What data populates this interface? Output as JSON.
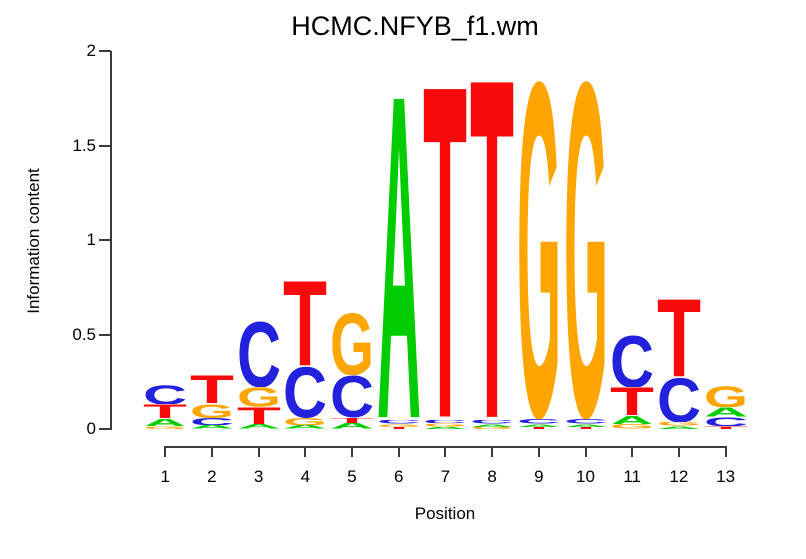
{
  "chart_data": {
    "type": "sequence-logo",
    "title": "HCMC.NFYB_f1.wm",
    "xlabel": "Position",
    "ylabel": "Information content",
    "ylim": [
      0,
      2
    ],
    "yticks": [
      {
        "value": 0,
        "label": "0"
      },
      {
        "value": 0.5,
        "label": "0.5"
      },
      {
        "value": 1,
        "label": "1"
      },
      {
        "value": 1.5,
        "label": "1.5"
      },
      {
        "value": 2,
        "label": "2"
      }
    ],
    "positions": [
      "1",
      "2",
      "3",
      "4",
      "5",
      "6",
      "7",
      "8",
      "9",
      "10",
      "11",
      "12",
      "13"
    ],
    "base_colors": {
      "A": "#00CC00",
      "C": "#2222DD",
      "G": "#FFA500",
      "T": "#F90A0A"
    },
    "stacks_note": "letters listed bottom-to-top, heights in bits (information content)",
    "stacks": [
      [
        {
          "base": "G",
          "bits": 0.015
        },
        {
          "base": "A",
          "bits": 0.04
        },
        {
          "base": "T",
          "bits": 0.075
        },
        {
          "base": "C",
          "bits": 0.105
        }
      ],
      [
        {
          "base": "A",
          "bits": 0.02
        },
        {
          "base": "C",
          "bits": 0.04
        },
        {
          "base": "G",
          "bits": 0.075
        },
        {
          "base": "T",
          "bits": 0.15
        }
      ],
      [
        {
          "base": "A",
          "bits": 0.025
        },
        {
          "base": "T",
          "bits": 0.09
        },
        {
          "base": "G",
          "bits": 0.105
        },
        {
          "base": "C",
          "bits": 0.35
        }
      ],
      [
        {
          "base": "A",
          "bits": 0.02
        },
        {
          "base": "G",
          "bits": 0.04
        },
        {
          "base": "C",
          "bits": 0.275
        },
        {
          "base": "T",
          "bits": 0.46
        }
      ],
      [
        {
          "base": "A",
          "bits": 0.03
        },
        {
          "base": "T",
          "bits": 0.03
        },
        {
          "base": "C",
          "bits": 0.225
        },
        {
          "base": "G",
          "bits": 0.335
        }
      ],
      [
        {
          "base": "T",
          "bits": 0.012
        },
        {
          "base": "G",
          "bits": 0.015
        },
        {
          "base": "C",
          "bits": 0.02
        },
        {
          "base": "A",
          "bits": 1.75
        }
      ],
      [
        {
          "base": "A",
          "bits": 0.012
        },
        {
          "base": "G",
          "bits": 0.018
        },
        {
          "base": "C",
          "bits": 0.02
        },
        {
          "base": "T",
          "bits": 1.8
        }
      ],
      [
        {
          "base": "G",
          "bits": 0.012
        },
        {
          "base": "A",
          "bits": 0.015
        },
        {
          "base": "C",
          "bits": 0.02
        },
        {
          "base": "T",
          "bits": 1.84
        }
      ],
      [
        {
          "base": "T",
          "bits": 0.012
        },
        {
          "base": "A",
          "bits": 0.015
        },
        {
          "base": "C",
          "bits": 0.025
        },
        {
          "base": "G",
          "bits": 1.81
        }
      ],
      [
        {
          "base": "T",
          "bits": 0.012
        },
        {
          "base": "A",
          "bits": 0.015
        },
        {
          "base": "C",
          "bits": 0.025
        },
        {
          "base": "G",
          "bits": 1.81
        }
      ],
      [
        {
          "base": "G",
          "bits": 0.025
        },
        {
          "base": "A",
          "bits": 0.045
        },
        {
          "base": "T",
          "bits": 0.15
        },
        {
          "base": "C",
          "bits": 0.28
        }
      ],
      [
        {
          "base": "A",
          "bits": 0.015
        },
        {
          "base": "G",
          "bits": 0.02
        },
        {
          "base": "C",
          "bits": 0.24
        },
        {
          "base": "T",
          "bits": 0.42
        }
      ],
      [
        {
          "base": "T",
          "bits": 0.015
        },
        {
          "base": "C",
          "bits": 0.05
        },
        {
          "base": "A",
          "bits": 0.05
        },
        {
          "base": "G",
          "bits": 0.115
        }
      ]
    ]
  }
}
